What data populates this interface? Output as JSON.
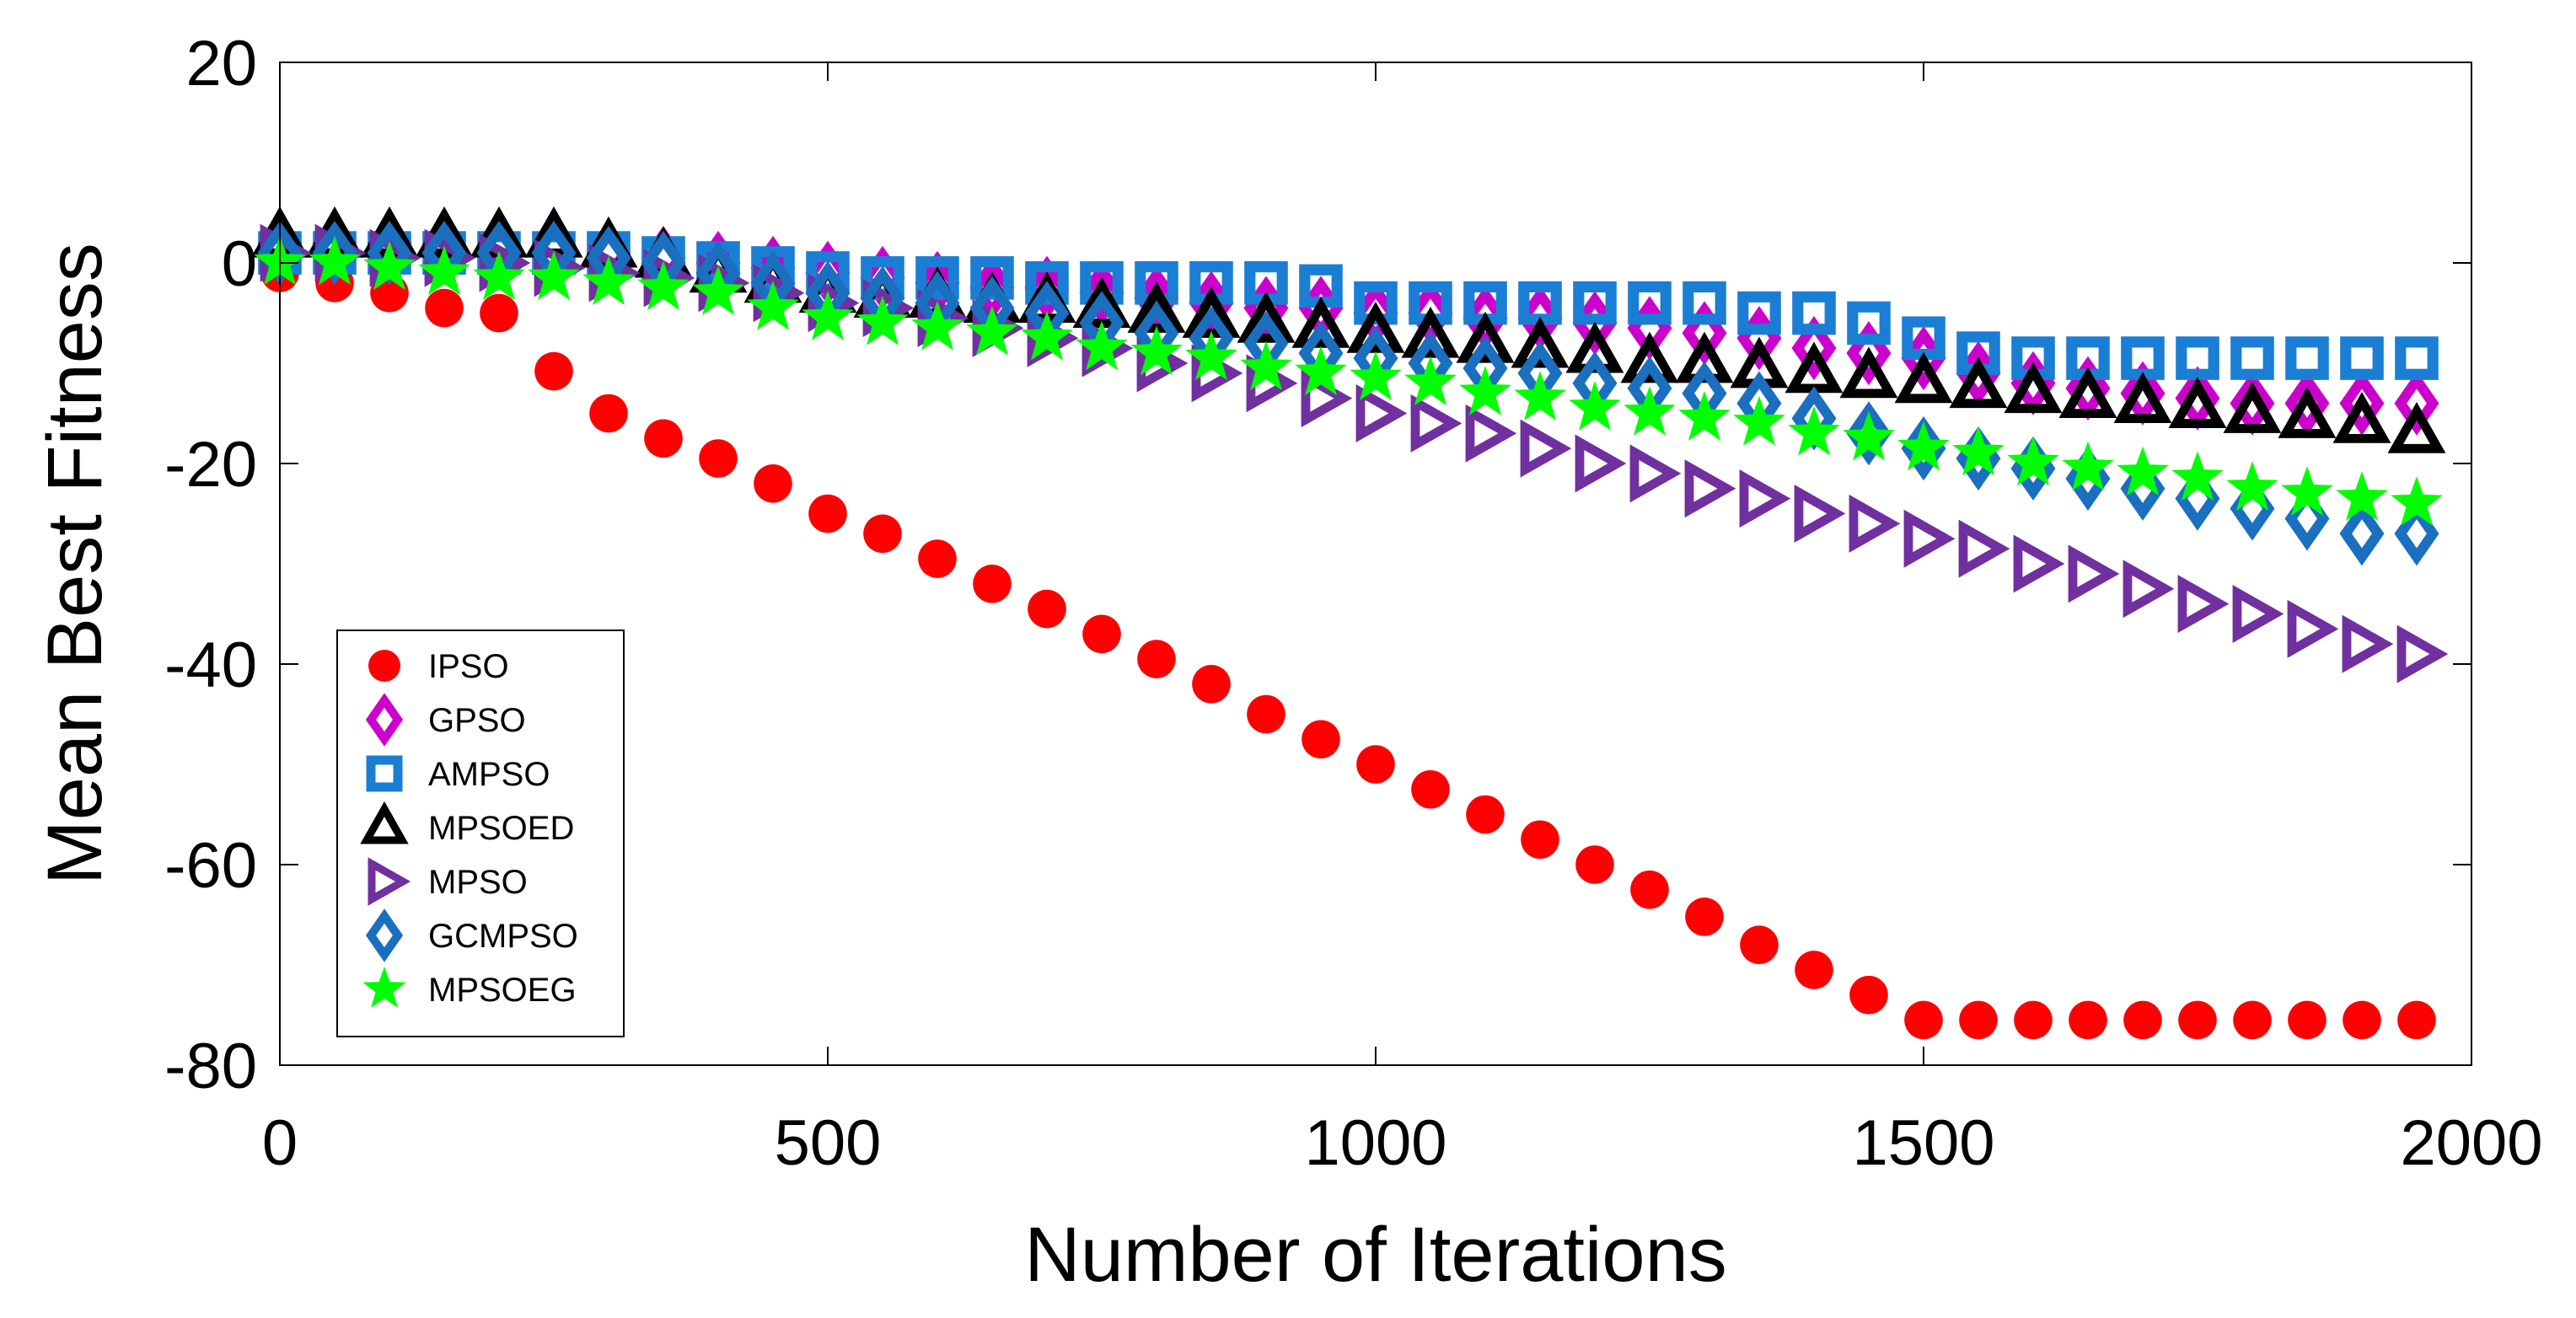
{
  "chart_data": {
    "type": "scatter",
    "title": "",
    "xlabel": "Number of Iterations",
    "ylabel": "Mean Best Fitness",
    "xlim": [
      0,
      2000
    ],
    "ylim": [
      -80,
      20
    ],
    "xticks": [
      0,
      500,
      1000,
      1500,
      2000
    ],
    "yticks": [
      20,
      0,
      -20,
      -40,
      -60,
      -80
    ],
    "grid": false,
    "legend_position": "lower-left",
    "x": [
      0,
      50,
      100,
      150,
      200,
      250,
      300,
      350,
      400,
      450,
      500,
      550,
      600,
      650,
      700,
      750,
      800,
      850,
      900,
      950,
      1000,
      1050,
      1100,
      1150,
      1200,
      1250,
      1300,
      1350,
      1400,
      1450,
      1500,
      1550,
      1600,
      1650,
      1700,
      1750,
      1800,
      1850,
      1900,
      1950
    ],
    "series": [
      {
        "name": "IPSO",
        "marker": "circle",
        "color": "#ff0000",
        "values": [
          -1,
          -2,
          -3,
          -4.5,
          -5,
          -10.8,
          -15,
          -17.5,
          -19.5,
          -22,
          -25,
          -27,
          -29.5,
          -32,
          -34.5,
          -37,
          -39.5,
          -42,
          -45,
          -47.5,
          -50,
          -52.5,
          -55,
          -57.5,
          -60,
          -62.5,
          -65.2,
          -68,
          -70.5,
          -73,
          -75.5,
          -75.5,
          -75.5,
          -75.5,
          -75.5,
          -75.5,
          -75.5,
          -75.5,
          -75.5,
          -75.5
        ]
      },
      {
        "name": "GPSO",
        "marker": "diamond",
        "color": "#cc00cc",
        "values": [
          2,
          2,
          2,
          1.5,
          1.5,
          1,
          1,
          0.5,
          0,
          -0.5,
          -1,
          -1.5,
          -2,
          -2.5,
          -2.5,
          -3,
          -3.5,
          -4,
          -4.5,
          -4.5,
          -5,
          -5,
          -5.5,
          -5.5,
          -6,
          -6.5,
          -7,
          -7.5,
          -8.5,
          -9,
          -9.5,
          -11,
          -12,
          -12.5,
          -13,
          -13.5,
          -14,
          -14,
          -14,
          -14
        ]
      },
      {
        "name": "AMPSO",
        "marker": "square",
        "color": "#1a7fd4",
        "values": [
          1,
          1,
          1,
          1,
          1,
          1,
          1,
          0.5,
          0,
          -0.5,
          -1,
          -1.5,
          -1.5,
          -1.5,
          -2,
          -2,
          -2,
          -2,
          -2,
          -2.3,
          -4,
          -4,
          -4,
          -4,
          -4,
          -4,
          -4,
          -5,
          -5,
          -6,
          -7.5,
          -9,
          -9.5,
          -9.5,
          -9.5,
          -9.5,
          -9.5,
          -9.5,
          -9.5,
          -9.5
        ]
      },
      {
        "name": "MPSOED",
        "marker": "triangle-up",
        "color": "#000000",
        "values": [
          2.5,
          2.5,
          2.5,
          2.5,
          2.5,
          2.5,
          1.5,
          0.5,
          -1,
          -2,
          -3,
          -3.5,
          -3.5,
          -4,
          -4,
          -4.5,
          -5,
          -5.5,
          -6,
          -6.5,
          -7,
          -7.5,
          -8,
          -8.5,
          -9,
          -10,
          -10,
          -10.5,
          -11,
          -11.5,
          -12,
          -12.5,
          -13,
          -13.5,
          -14,
          -14.5,
          -15,
          -15.5,
          -16,
          -17
        ]
      },
      {
        "name": "MPSO",
        "marker": "triangle-right",
        "color": "#7030a0",
        "values": [
          1,
          1,
          0.5,
          0.5,
          0,
          -0.5,
          -1,
          -1.5,
          -2,
          -3,
          -4,
          -4.5,
          -5.5,
          -6.5,
          -7.5,
          -8.5,
          -10,
          -11,
          -12,
          -13.5,
          -15,
          -16,
          -17,
          -18.5,
          -20,
          -21,
          -22.5,
          -23.5,
          -25,
          -26,
          -27.5,
          -28.5,
          -30,
          -31,
          -32.5,
          -34,
          -35,
          -36.5,
          -38,
          -39
        ]
      },
      {
        "name": "GCMPSO",
        "marker": "diamond",
        "color": "#1a6fbf",
        "values": [
          1,
          1,
          1,
          1,
          1,
          1,
          0.5,
          0,
          -1,
          -2,
          -3,
          -3.5,
          -4,
          -4.5,
          -5,
          -6,
          -7,
          -7.5,
          -8,
          -9,
          -9.5,
          -10,
          -10.5,
          -11,
          -12,
          -12.5,
          -13,
          -14,
          -15.5,
          -17,
          -18.5,
          -19.5,
          -20.5,
          -21.5,
          -22.5,
          -23.5,
          -24.5,
          -25.5,
          -27,
          -27
        ]
      },
      {
        "name": "MPSOEG",
        "marker": "star",
        "color": "#00ff00",
        "values": [
          0,
          0,
          -0.5,
          -1,
          -1.5,
          -1.5,
          -2,
          -2.5,
          -3,
          -4.5,
          -5.5,
          -6,
          -6.5,
          -7,
          -7.5,
          -8.5,
          -9,
          -9.5,
          -10.5,
          -11,
          -11.5,
          -12,
          -13,
          -13.5,
          -14.5,
          -15,
          -15.5,
          -16,
          -17,
          -17.5,
          -18.5,
          -19,
          -20,
          -20.5,
          -21,
          -21.5,
          -22.5,
          -23,
          -23.5,
          -24
        ]
      }
    ]
  }
}
